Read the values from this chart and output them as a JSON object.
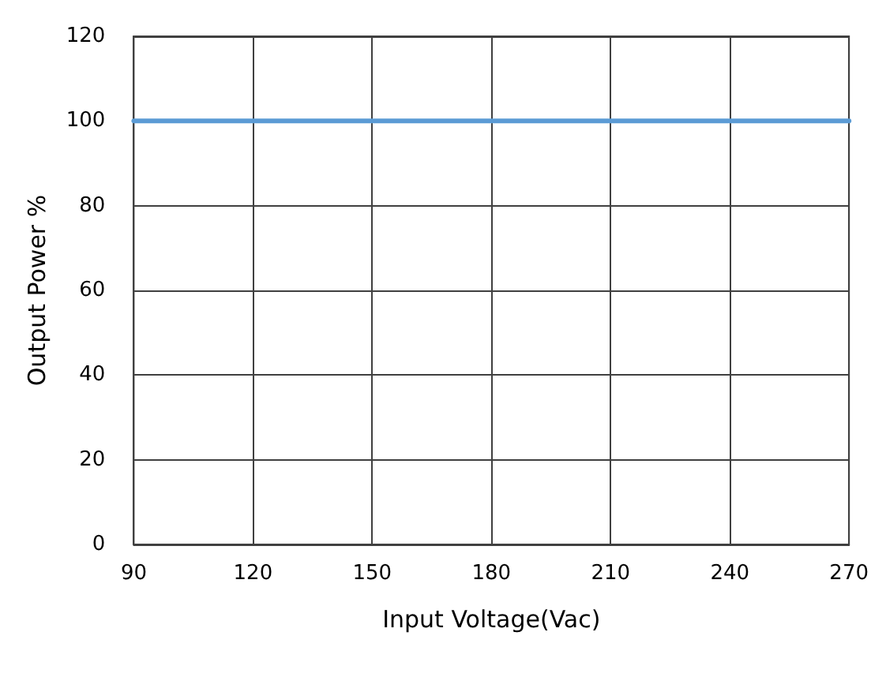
{
  "chart_data": {
    "type": "line",
    "xlabel": "Input Voltage(Vac)",
    "ylabel": "Output Power %",
    "x": [
      90,
      270
    ],
    "series": [
      {
        "color": "#5b9bd5",
        "values": [
          100,
          100
        ]
      }
    ],
    "xlim": [
      90,
      270
    ],
    "xticks": [
      90,
      120,
      150,
      180,
      210,
      240,
      270
    ],
    "ylim": [
      0,
      120
    ],
    "yticks": [
      0,
      20,
      40,
      60,
      80,
      100,
      120
    ],
    "grid": true,
    "marker": "none",
    "line_style": "solid"
  }
}
